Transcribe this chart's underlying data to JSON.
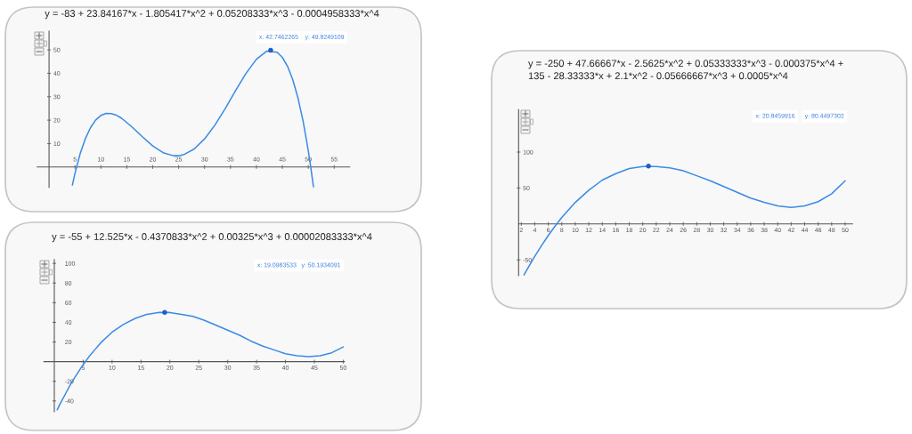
{
  "chart_data": [
    {
      "type": "line",
      "title": "y = -83 + 23.84167*x - 1.805417*x^2 + 0.05208333*x^3 - 0.0004958333*x^4",
      "series": [
        {
          "color": "#3c8ae6",
          "x": [
            4.5,
            5,
            6,
            7,
            8,
            9,
            10,
            11,
            12,
            13,
            14,
            16,
            18,
            20,
            22,
            24,
            25,
            26,
            28,
            30,
            32,
            34,
            36,
            38,
            40,
            42,
            44,
            45,
            46,
            47,
            48,
            49,
            50,
            50.5,
            51
          ],
          "values": [
            -7.7,
            -2.7,
            5.7,
            12.1,
            16.8,
            20.1,
            22.0,
            22.9,
            22.8,
            22.1,
            20.8,
            17.1,
            12.9,
            9.0,
            6.1,
            4.8,
            4.8,
            5.3,
            7.7,
            12.0,
            17.9,
            25.0,
            32.7,
            40.0,
            46.0,
            49.5,
            49.0,
            46.8,
            43.0,
            37.3,
            29.6,
            19.6,
            7.0,
            -0.4,
            -8.5
          ]
        },
        {
          "type": "scatter",
          "marker": "circle",
          "color": "#1f5fc4",
          "x": [
            42.7462265
          ],
          "values": [
            49.8249109
          ]
        }
      ],
      "xlim": [
        -2.3,
        58
      ],
      "ylim": [
        -8.7,
        58
      ],
      "xticks": [
        5,
        10,
        15,
        20,
        25,
        30,
        35,
        40,
        45,
        50,
        55
      ],
      "yticks": [
        10,
        20,
        30,
        40,
        50
      ],
      "annotations": [
        "x: 42.7462265",
        "y: 49.8249109"
      ]
    },
    {
      "type": "line",
      "title": "y = -250 + 47.66667*x - 2.5625*x^2 + 0.05333333*x^3 - 0.000375*x^4 +\n135 - 28.33333*x + 2.1*x^2 - 0.05666667*x^3 + 0.0005*x^4",
      "series": [
        {
          "color": "#3c8ae6",
          "x": [
            2.4,
            3,
            4,
            5,
            6,
            7,
            8,
            10,
            12,
            14,
            16,
            18,
            20,
            21,
            22,
            24,
            26,
            28,
            30,
            32,
            34,
            36,
            38,
            40,
            42,
            44,
            46,
            48,
            50
          ],
          "values": [
            -71,
            -61,
            -45,
            -30,
            -16,
            -3,
            9,
            30,
            47,
            61,
            70,
            77,
            80,
            80,
            80,
            78,
            74,
            67,
            60,
            52,
            44,
            36,
            30,
            25,
            23,
            25,
            31,
            42,
            60
          ]
        },
        {
          "type": "scatter",
          "marker": "circle",
          "color": "#1f5fc4",
          "x": [
            20.8459916
          ],
          "values": [
            80.4497302
          ]
        }
      ],
      "xlim": [
        1.6,
        51.1
      ],
      "ylim": [
        -72,
        159
      ],
      "xticks": [
        2,
        4,
        6,
        8,
        10,
        12,
        14,
        16,
        18,
        20,
        22,
        24,
        26,
        28,
        30,
        32,
        34,
        36,
        38,
        40,
        42,
        44,
        46,
        48,
        50
      ],
      "yticks": [
        -50,
        50,
        100
      ],
      "annotations": [
        "x: 20.8459916",
        "y: 80.4497302"
      ]
    },
    {
      "type": "line",
      "title": "y = -55 + 12.525*x - 0.4370833*x^2 + 0.00325*x^3 + 0.00002083333*x^4",
      "series": [
        {
          "color": "#3c8ae6",
          "x": [
            0.5,
            1,
            2,
            3,
            4,
            5,
            6,
            7,
            8,
            10,
            12,
            14,
            16,
            18,
            20,
            22,
            24,
            26,
            28,
            30,
            32,
            34,
            36,
            38,
            40,
            42,
            44,
            46,
            48,
            50
          ],
          "values": [
            -49,
            -43,
            -32,
            -21,
            -12,
            -3,
            5,
            12,
            19,
            30,
            38,
            44,
            48,
            50,
            50,
            48,
            46,
            42,
            37,
            32,
            27,
            21,
            16,
            12,
            8,
            6,
            5,
            6,
            9,
            15
          ]
        },
        {
          "type": "scatter",
          "marker": "circle",
          "color": "#1f5fc4",
          "x": [
            19.0983533
          ],
          "values": [
            50.1934091
          ]
        }
      ],
      "xlim": [
        -1.8,
        50.2
      ],
      "ylim": [
        -51,
        104
      ],
      "xticks": [
        5,
        10,
        15,
        20,
        25,
        30,
        35,
        40,
        45,
        50
      ],
      "yticks": [
        -40,
        -20,
        20,
        40,
        60,
        80,
        100
      ],
      "annotations": [
        "x: 19.0983533",
        "y: 50.1934091"
      ]
    }
  ]
}
